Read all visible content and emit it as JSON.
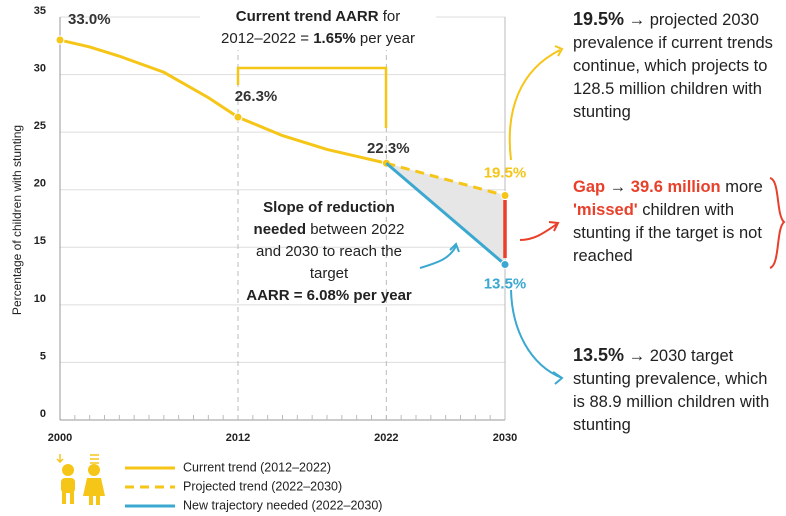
{
  "chart_data": {
    "type": "line",
    "ylabel": "Percentage of children with stunting",
    "xlim": [
      2000,
      2030
    ],
    "xticks": [
      2000,
      2012,
      2022,
      2030
    ],
    "ylim": [
      0,
      35
    ],
    "yticks": [
      0,
      5,
      10,
      15,
      20,
      25,
      30,
      35
    ],
    "grid": true,
    "series": [
      {
        "name": "Current trend (2012–2022)",
        "color": "#f5c518",
        "style": "solid",
        "x": [
          2000,
          2002,
          2004,
          2007,
          2010,
          2012,
          2015,
          2018,
          2020,
          2022
        ],
        "values": [
          33.0,
          32.4,
          31.6,
          30.2,
          28.0,
          26.3,
          24.7,
          23.5,
          22.9,
          22.3
        ],
        "value_labels": [
          "33.0%",
          null,
          null,
          null,
          null,
          "26.3%",
          null,
          null,
          null,
          "22.3%"
        ]
      },
      {
        "name": "Projected trend (2022–2030)",
        "color": "#f5c518",
        "style": "dashed",
        "x": [
          2022,
          2030
        ],
        "values": [
          22.3,
          19.5
        ],
        "value_labels": [
          null,
          "19.5%"
        ]
      },
      {
        "name": "New trajectory needed (2022–2030)",
        "color": "#3aa8d0",
        "style": "solid",
        "x": [
          2022,
          2030
        ],
        "values": [
          22.3,
          13.5
        ],
        "value_labels": [
          null,
          "13.5%"
        ]
      }
    ],
    "annotations": {
      "current_aarr": [
        "Current trend AARR",
        " for",
        "2012–2022 = ",
        "1.65%",
        " per year"
      ],
      "slope": [
        "Slope of reduction needed",
        " between 2022 and 2030 to reach the target",
        "AARR = 6.08% per year"
      ],
      "projected_note": [
        "19.5%",
        " → projected 2030 prevalence if current trends continue, which projects to 128.5 million children with stunting"
      ],
      "gap_note": [
        "Gap",
        " → ",
        "39.6 million",
        " more ",
        "'missed'",
        " children with stunting if the target is not reached"
      ],
      "target_note": [
        "13.5%",
        " → 2030 target stunting prevalence, which is 88.9 million children with stunting"
      ]
    }
  }
}
